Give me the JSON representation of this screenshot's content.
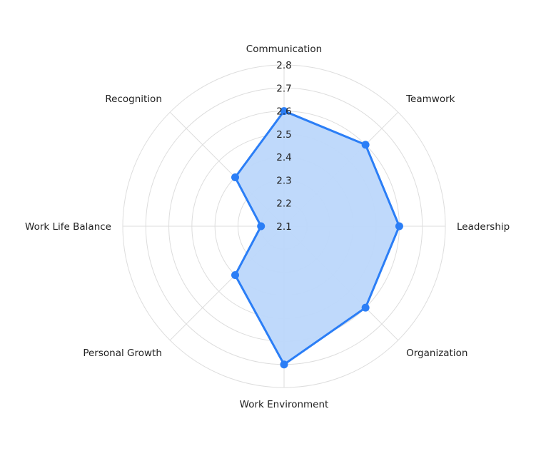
{
  "chart_data": {
    "type": "radar",
    "title": "",
    "categories": [
      "Communication",
      "Teamwork",
      "Leadership",
      "Organization",
      "Work Environment",
      "Personal Growth",
      "Work Life Balance",
      "Recognition"
    ],
    "series": [
      {
        "name": "Scores",
        "values": [
          2.6,
          2.6,
          2.6,
          2.6,
          2.7,
          2.4,
          2.2,
          2.4
        ]
      }
    ],
    "radial_range": [
      2.1,
      2.8
    ],
    "radial_ticks": [
      "2.1",
      "2.2",
      "2.3",
      "2.4",
      "2.5",
      "2.6",
      "2.7",
      "2.8"
    ],
    "grid": true,
    "colors": {
      "line": "#2b7ef6",
      "fill": "#bcd7fb",
      "grid": "#dddddd"
    }
  }
}
